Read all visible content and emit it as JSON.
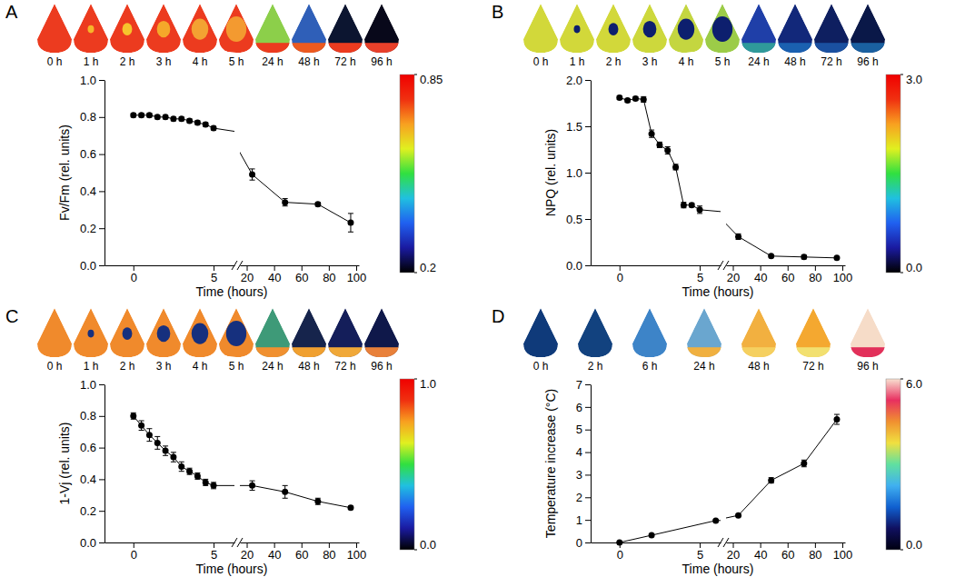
{
  "chart_data": [
    {
      "type": "line",
      "panel": "A",
      "images": [
        {
          "label": "0 h",
          "color": "#ec3b1f"
        },
        {
          "label": "1 h",
          "color": "#ec3b1f",
          "spot_color": "#f7b52a"
        },
        {
          "label": "2 h",
          "color": "#ec3b1f",
          "spot_color": "#f6c42c"
        },
        {
          "label": "3 h",
          "color": "#ec3b1f",
          "spot_color": "#f5a82a"
        },
        {
          "label": "4 h",
          "color": "#ec3b1f",
          "spot_color": "#f3a232"
        },
        {
          "label": "5 h",
          "color": "#ec3b1f",
          "spot_color": "#f39a30"
        },
        {
          "label": "24 h",
          "color": "#8ccf4a",
          "base_color": "#ec3b1f"
        },
        {
          "label": "48 h",
          "color": "#2f5fb8",
          "base_color": "#ec5a1f"
        },
        {
          "label": "72 h",
          "color": "#0c1530",
          "base_color": "#ec3b1f"
        },
        {
          "label": "96 h",
          "color": "#08081a",
          "base_color": "#e8402a"
        }
      ],
      "x_label": "Time (hours)",
      "y_label": "Fv/Fm (rel. units)",
      "x": [
        0,
        0.5,
        1,
        1.5,
        2,
        2.5,
        3,
        3.5,
        4,
        4.5,
        5,
        24,
        48,
        72,
        96
      ],
      "series": [
        {
          "color": "#000000",
          "marker": "circle",
          "values": [
            0.81,
            0.81,
            0.81,
            0.8,
            0.8,
            0.79,
            0.79,
            0.78,
            0.77,
            0.76,
            0.74,
            0.49,
            0.34,
            0.33,
            0.23
          ],
          "errors": [
            0.01,
            0.01,
            0.01,
            0.01,
            0.01,
            0.01,
            0.01,
            0.01,
            0.01,
            0.01,
            0.01,
            0.03,
            0.02,
            0.01,
            0.05
          ]
        }
      ],
      "x_segments": [
        {
          "xlim": [
            -1.8,
            6.3
          ],
          "xticks": [
            0,
            5
          ]
        },
        {
          "xlim": [
            15,
            102
          ],
          "xticks": [
            20,
            40,
            60,
            80,
            100
          ]
        }
      ],
      "ylim": [
        0,
        1
      ],
      "yticks": [
        {
          "value": 0,
          "label": "0.0"
        },
        {
          "value": 0.2,
          "label": "0.2"
        },
        {
          "value": 0.4,
          "label": "0.4"
        },
        {
          "value": 0.6,
          "label": "0.6"
        },
        {
          "value": 0.8,
          "label": "0.8"
        },
        {
          "value": 1,
          "label": "1.0"
        }
      ],
      "colorbar": {
        "range": [
          0.2,
          0.85
        ],
        "ticks": [
          0.2,
          0.85
        ],
        "colors": [
          "#000000",
          "#1a1aa0",
          "#2060f0",
          "#20c0e0",
          "#30e040",
          "#e0f020",
          "#f8a020",
          "#f03010",
          "#f00000"
        ]
      }
    },
    {
      "type": "line",
      "panel": "B",
      "images": [
        {
          "label": "0 h",
          "color": "#d2d83a"
        },
        {
          "label": "1 h",
          "color": "#d2d83a",
          "spot_color": "#0d1f6e"
        },
        {
          "label": "2 h",
          "color": "#d2d83a",
          "spot_color": "#0d1f6e"
        },
        {
          "label": "3 h",
          "color": "#cdd83c",
          "spot_color": "#0d1f6e"
        },
        {
          "label": "4 h",
          "color": "#c4d640",
          "spot_color": "#0d1f6e"
        },
        {
          "label": "5 h",
          "color": "#9ccc48",
          "spot_color": "#0d1f6e"
        },
        {
          "label": "24 h",
          "color": "#1f3fa8",
          "base_color": "#2f9a9a"
        },
        {
          "label": "48 h",
          "color": "#12287a",
          "base_color": "#1a60b0"
        },
        {
          "label": "72 h",
          "color": "#0e1f60",
          "base_color": "#1a50a0"
        },
        {
          "label": "96 h",
          "color": "#0a1848",
          "base_color": "#1a60a0"
        }
      ],
      "x_label": "Time (hours)",
      "y_label": "NPQ (rel. units)",
      "x": [
        0,
        0.5,
        1,
        1.5,
        2,
        2.5,
        3,
        3.5,
        4,
        4.5,
        5,
        24,
        48,
        72,
        96
      ],
      "series": [
        {
          "color": "#000000",
          "marker": "circle",
          "values": [
            1.81,
            1.78,
            1.8,
            1.79,
            1.42,
            1.3,
            1.24,
            1.06,
            0.65,
            0.65,
            0.6,
            0.31,
            0.1,
            0.09,
            0.08
          ],
          "errors": [
            0.02,
            0.02,
            0.02,
            0.03,
            0.04,
            0.03,
            0.04,
            0.03,
            0.03,
            0.02,
            0.04,
            0.03,
            0.01,
            0.02,
            0.01
          ]
        }
      ],
      "x_segments": [
        {
          "xlim": [
            -1.8,
            6.3
          ],
          "xticks": [
            0,
            5
          ]
        },
        {
          "xlim": [
            15,
            102
          ],
          "xticks": [
            20,
            40,
            60,
            80,
            100
          ]
        }
      ],
      "ylim": [
        0,
        2
      ],
      "yticks": [
        {
          "value": 0,
          "label": "0.0"
        },
        {
          "value": 0.5,
          "label": "0.5"
        },
        {
          "value": 1,
          "label": "1.0"
        },
        {
          "value": 1.5,
          "label": "1.5"
        },
        {
          "value": 2,
          "label": "2.0"
        }
      ],
      "colorbar": {
        "range": [
          0,
          3
        ],
        "ticks": [
          {
            "value": 0,
            "label": "0.0"
          },
          {
            "value": 3,
            "label": "3.0"
          }
        ],
        "colors": [
          "#000000",
          "#1a1aa0",
          "#2060f0",
          "#20c0e0",
          "#30e040",
          "#e0f020",
          "#f8a020",
          "#f03010",
          "#f00000"
        ]
      }
    },
    {
      "type": "line",
      "panel": "C",
      "images": [
        {
          "label": "0 h",
          "color": "#f08a2c"
        },
        {
          "label": "1 h",
          "color": "#f08a2c",
          "spot_color": "#16307e"
        },
        {
          "label": "2 h",
          "color": "#f08a2c",
          "spot_color": "#16307e"
        },
        {
          "label": "3 h",
          "color": "#f08a2c",
          "spot_color": "#16307e"
        },
        {
          "label": "4 h",
          "color": "#f08a2c",
          "spot_color": "#16307e"
        },
        {
          "label": "5 h",
          "color": "#f08a2c",
          "spot_color": "#16307e"
        },
        {
          "label": "24 h",
          "color": "#3e9a78",
          "base_color": "#f09030"
        },
        {
          "label": "48 h",
          "color": "#16244c",
          "base_color": "#f0a030"
        },
        {
          "label": "72 h",
          "color": "#141e5a",
          "base_color": "#f0a838"
        },
        {
          "label": "96 h",
          "color": "#0f184a",
          "base_color": "#e8803a"
        }
      ],
      "x_label": "Time (hours)",
      "y_label": "1-Vj (rel. units)",
      "x": [
        0,
        0.5,
        1,
        1.5,
        2,
        2.5,
        3,
        3.5,
        4,
        4.5,
        5,
        24,
        48,
        72,
        96
      ],
      "series": [
        {
          "color": "#000000",
          "marker": "circle",
          "values": [
            0.8,
            0.74,
            0.68,
            0.63,
            0.58,
            0.54,
            0.48,
            0.45,
            0.42,
            0.38,
            0.36,
            0.36,
            0.32,
            0.26,
            0.22
          ],
          "errors": [
            0.02,
            0.03,
            0.04,
            0.04,
            0.03,
            0.03,
            0.03,
            0.02,
            0.02,
            0.02,
            0.02,
            0.03,
            0.04,
            0.02,
            0.01
          ]
        }
      ],
      "x_segments": [
        {
          "xlim": [
            -1.8,
            6.3
          ],
          "xticks": [
            0,
            5
          ]
        },
        {
          "xlim": [
            15,
            102
          ],
          "xticks": [
            20,
            40,
            60,
            80,
            100
          ]
        }
      ],
      "ylim": [
        0,
        1
      ],
      "yticks": [
        {
          "value": 0,
          "label": "0.0"
        },
        {
          "value": 0.2,
          "label": "0.2"
        },
        {
          "value": 0.4,
          "label": "0.4"
        },
        {
          "value": 0.6,
          "label": "0.6"
        },
        {
          "value": 0.8,
          "label": "0.8"
        },
        {
          "value": 1,
          "label": "1.0"
        }
      ],
      "colorbar": {
        "range": [
          0,
          1
        ],
        "ticks": [
          {
            "value": 0,
            "label": "0.0"
          },
          {
            "value": 1,
            "label": "1.0"
          }
        ],
        "colors": [
          "#000000",
          "#1a1aa0",
          "#2060f0",
          "#20c0e0",
          "#30e040",
          "#e0f020",
          "#f8a020",
          "#f03010",
          "#f00000"
        ]
      }
    },
    {
      "type": "line",
      "panel": "D",
      "images": [
        {
          "label": "0 h",
          "color": "#0f3a7a"
        },
        {
          "label": "2 h",
          "color": "#12427f"
        },
        {
          "label": "6 h",
          "color": "#3d84c8"
        },
        {
          "label": "24 h",
          "color": "#6aa6cf",
          "base_color": "#f0b040"
        },
        {
          "label": "48 h",
          "color": "#f2b040",
          "base_color": "#f5d060"
        },
        {
          "label": "72 h",
          "color": "#f4a830",
          "base_color": "#f2e070"
        },
        {
          "label": "96 h",
          "color": "#f6dcc8",
          "base_color": "#e2305a"
        }
      ],
      "x_label": "Time (hours)",
      "y_label": "Temperature increase (°C)",
      "x": [
        0,
        2,
        6,
        24,
        48,
        72,
        96
      ],
      "series": [
        {
          "color": "#000000",
          "marker": "circle",
          "values": [
            0,
            0.32,
            0.97,
            1.2,
            2.75,
            3.5,
            5.45
          ],
          "errors": [
            0,
            0.02,
            0.04,
            0.05,
            0.12,
            0.15,
            0.22
          ]
        }
      ],
      "x_segments": [
        {
          "xlim": [
            -1.8,
            6.3
          ],
          "xticks": [
            0,
            5
          ]
        },
        {
          "xlim": [
            15,
            102
          ],
          "xticks": [
            20,
            40,
            60,
            80,
            100
          ]
        }
      ],
      "ylim": [
        0,
        7
      ],
      "yticks": [
        0,
        1,
        2,
        3,
        4,
        5,
        6,
        7
      ],
      "colorbar": {
        "range": [
          0,
          6
        ],
        "ticks": [
          {
            "value": 0,
            "label": "0.0"
          },
          {
            "value": 6,
            "label": "6.0"
          }
        ],
        "colors": [
          "#000010",
          "#101060",
          "#1060d0",
          "#40b0f0",
          "#60e0a0",
          "#f0e040",
          "#f09030",
          "#e83060",
          "#f8e0d0"
        ]
      }
    }
  ]
}
